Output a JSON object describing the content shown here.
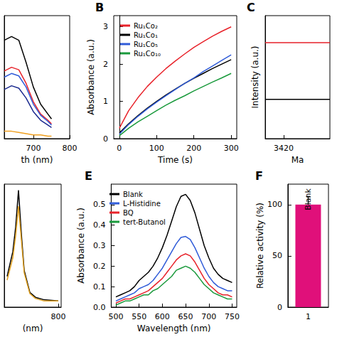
{
  "chart_data": [
    {
      "type": "line",
      "x_label": "th (nm)",
      "x": [
        620,
        640,
        660,
        680,
        700,
        720,
        740,
        750
      ],
      "xlim": [
        620,
        800
      ],
      "xticks": [
        700,
        800
      ],
      "ylim": [
        0,
        1
      ],
      "tick_labels": "x",
      "grid": false,
      "series": [
        {
          "color": "#000000",
          "values": [
            0.8,
            0.83,
            0.8,
            0.62,
            0.42,
            0.28,
            0.2,
            0.16
          ]
        },
        {
          "color": "#e8222a",
          "values": [
            0.55,
            0.58,
            0.56,
            0.45,
            0.3,
            0.2,
            0.15,
            0.12
          ]
        },
        {
          "color": "#2f5bd8",
          "values": [
            0.5,
            0.53,
            0.51,
            0.42,
            0.28,
            0.19,
            0.14,
            0.11
          ]
        },
        {
          "color": "#1b2a8f",
          "values": [
            0.4,
            0.43,
            0.41,
            0.33,
            0.22,
            0.15,
            0.11,
            0.09
          ]
        },
        {
          "color": "#f0a020",
          "values": [
            0.06,
            0.06,
            0.05,
            0.04,
            0.03,
            0.03,
            0.02,
            0.02
          ]
        }
      ]
    },
    {
      "type": "line",
      "panel": "B",
      "x_label": "Time (s)",
      "y_label": "Absorbance (a.u.)",
      "x": [
        0,
        25,
        50,
        75,
        100,
        125,
        150,
        175,
        200,
        225,
        250,
        275,
        300
      ],
      "xlim": [
        -15,
        315
      ],
      "xticks": [
        0,
        100,
        200,
        300
      ],
      "ylim": [
        0,
        3.3
      ],
      "yticks": [
        0,
        1,
        2,
        3
      ],
      "grid": false,
      "legend": "upper left",
      "series": [
        {
          "name": "Ru₁Co₂",
          "color": "#e8222a",
          "values": [
            0.28,
            0.75,
            1.1,
            1.4,
            1.65,
            1.88,
            2.08,
            2.27,
            2.45,
            2.6,
            2.75,
            2.88,
            3.0
          ]
        },
        {
          "name": "Ru₁Co₁",
          "color": "#000000",
          "values": [
            0.15,
            0.4,
            0.62,
            0.82,
            1.0,
            1.17,
            1.33,
            1.48,
            1.62,
            1.75,
            1.88,
            2.0,
            2.12
          ]
        },
        {
          "name": "Ru₁Co₅",
          "color": "#2f5bd8",
          "values": [
            0.12,
            0.38,
            0.6,
            0.8,
            0.98,
            1.15,
            1.32,
            1.48,
            1.63,
            1.8,
            1.95,
            2.1,
            2.25
          ]
        },
        {
          "name": "Ru₁Co₁₀",
          "color": "#1a9a3c",
          "values": [
            0.08,
            0.28,
            0.45,
            0.6,
            0.75,
            0.9,
            1.03,
            1.15,
            1.28,
            1.4,
            1.52,
            1.63,
            1.75
          ]
        }
      ]
    },
    {
      "type": "line",
      "panel": "C",
      "x_label": "Ma",
      "y_label": "Intensity (a.u.)",
      "x": [
        3410,
        3415,
        3420,
        3425,
        3430,
        3435,
        3440,
        3445
      ],
      "xlim": [
        3410,
        3445
      ],
      "xticks": [
        3420
      ],
      "ylim": [
        0,
        1
      ],
      "tick_labels": "x",
      "grid": false,
      "series": [
        {
          "color": "#e8222a",
          "values": [
            0.78,
            0.78,
            0.78,
            0.78,
            0.78,
            0.78,
            0.78,
            0.78
          ]
        },
        {
          "color": "#000000",
          "values": [
            0.32,
            0.32,
            0.32,
            0.32,
            0.32,
            0.32,
            0.32,
            0.32
          ]
        }
      ]
    },
    {
      "type": "line",
      "x_label": "(nm)",
      "x": [
        620,
        640,
        650,
        660,
        670,
        680,
        700,
        720,
        750,
        800
      ],
      "xlim": [
        610,
        810
      ],
      "xticks": [
        800
      ],
      "ylim": [
        0,
        1
      ],
      "tick_labels": "x",
      "grid": false,
      "series": [
        {
          "color": "#000000",
          "values": [
            0.25,
            0.45,
            0.65,
            0.95,
            0.6,
            0.3,
            0.12,
            0.08,
            0.06,
            0.05
          ]
        },
        {
          "color": "#e0a020",
          "values": [
            0.22,
            0.4,
            0.58,
            0.82,
            0.55,
            0.28,
            0.11,
            0.07,
            0.05,
            0.05
          ]
        }
      ]
    },
    {
      "type": "line",
      "panel": "E",
      "x_label": "Wavelength (nm)",
      "y_label": "Absorbance (a.u.)",
      "x": [
        500,
        510,
        520,
        530,
        540,
        550,
        560,
        570,
        580,
        590,
        600,
        610,
        620,
        630,
        640,
        650,
        660,
        670,
        680,
        690,
        700,
        710,
        720,
        730,
        740,
        750
      ],
      "xlim": [
        490,
        760
      ],
      "xticks": [
        500,
        550,
        600,
        650,
        700,
        750
      ],
      "ylim": [
        0,
        0.6
      ],
      "yticks": [
        {
          "value": 0,
          "label": "0.0"
        },
        0.1,
        0.2,
        0.3,
        0.4,
        0.5
      ],
      "grid": false,
      "legend": "upper left",
      "series": [
        {
          "name": "Blank",
          "color": "#000000",
          "values": [
            0.05,
            0.06,
            0.07,
            0.08,
            0.1,
            0.13,
            0.15,
            0.17,
            0.2,
            0.24,
            0.29,
            0.35,
            0.42,
            0.49,
            0.54,
            0.55,
            0.52,
            0.46,
            0.38,
            0.3,
            0.24,
            0.19,
            0.16,
            0.14,
            0.13,
            0.12
          ]
        },
        {
          "name": "L-Histidine",
          "color": "#2f5bd8",
          "values": [
            0.03,
            0.04,
            0.05,
            0.06,
            0.07,
            0.09,
            0.1,
            0.11,
            0.13,
            0.16,
            0.19,
            0.23,
            0.27,
            0.31,
            0.34,
            0.345,
            0.33,
            0.29,
            0.24,
            0.19,
            0.15,
            0.12,
            0.1,
            0.09,
            0.08,
            0.08
          ]
        },
        {
          "name": "BQ",
          "color": "#e8222a",
          "values": [
            0.02,
            0.03,
            0.04,
            0.04,
            0.05,
            0.06,
            0.07,
            0.08,
            0.1,
            0.12,
            0.14,
            0.17,
            0.2,
            0.23,
            0.25,
            0.26,
            0.25,
            0.22,
            0.18,
            0.14,
            0.11,
            0.09,
            0.07,
            0.06,
            0.06,
            0.05
          ]
        },
        {
          "name": "tert-Butanol",
          "color": "#1a9a3c",
          "values": [
            0.01,
            0.02,
            0.03,
            0.03,
            0.04,
            0.05,
            0.06,
            0.06,
            0.08,
            0.09,
            0.11,
            0.13,
            0.15,
            0.18,
            0.19,
            0.2,
            0.19,
            0.17,
            0.14,
            0.11,
            0.09,
            0.07,
            0.06,
            0.05,
            0.04,
            0.04
          ]
        }
      ]
    },
    {
      "type": "bar",
      "panel": "F",
      "y_label": "Relative activity (%)",
      "categories": [
        "1"
      ],
      "values": [
        100
      ],
      "errors": [
        8
      ],
      "annotations": [
        "Blank"
      ],
      "color": "#e0107a",
      "ylim": [
        0,
        120
      ],
      "yticks": [
        0,
        50,
        100
      ],
      "grid": false
    }
  ]
}
